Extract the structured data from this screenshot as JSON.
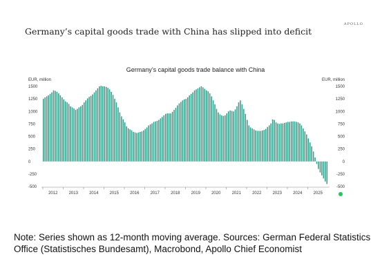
{
  "brand": "APOLLO",
  "headline": "Germany’s capital goods trade with China has slipped into deficit",
  "note": "Note: Series shown as 12-month moving average. Sources: German Federal Statistics Office (Statistisches Bundesamt), Macrobond, Apollo Chief Economist",
  "colors": {
    "bar": "#2e9c86",
    "marker": "#22c55e"
  },
  "chart_data": {
    "type": "bar",
    "title": "Germany’s capital goods trade balance with China",
    "ylabel_left": "EUR, million",
    "ylabel_right": "EUR, million",
    "ylim": [
      -500,
      1500
    ],
    "yticks": [
      1500,
      1250,
      1000,
      750,
      500,
      250,
      0,
      -250,
      -500
    ],
    "xticks": [
      "2012",
      "2013",
      "2014",
      "2015",
      "2016",
      "2017",
      "2018",
      "2019",
      "2020",
      "2021",
      "2022",
      "2023",
      "2024",
      "2025"
    ],
    "x_start": "2012-01",
    "frequency": "monthly",
    "values": [
      1250,
      1280,
      1300,
      1320,
      1350,
      1380,
      1420,
      1410,
      1390,
      1360,
      1320,
      1280,
      1240,
      1200,
      1180,
      1150,
      1100,
      1080,
      1060,
      1030,
      1050,
      1080,
      1100,
      1130,
      1180,
      1220,
      1260,
      1290,
      1310,
      1340,
      1380,
      1420,
      1460,
      1500,
      1510,
      1500,
      1500,
      1490,
      1470,
      1440,
      1390,
      1330,
      1250,
      1180,
      1080,
      980,
      900,
      840,
      780,
      700,
      660,
      640,
      620,
      590,
      580,
      570,
      580,
      590,
      600,
      620,
      650,
      680,
      720,
      740,
      760,
      790,
      800,
      810,
      830,
      860,
      890,
      920,
      950,
      960,
      960,
      960,
      990,
      1030,
      1070,
      1120,
      1160,
      1190,
      1220,
      1240,
      1250,
      1280,
      1320,
      1350,
      1380,
      1420,
      1440,
      1460,
      1480,
      1500,
      1480,
      1450,
      1420,
      1400,
      1360,
      1300,
      1220,
      1140,
      1050,
      980,
      940,
      920,
      910,
      920,
      960,
      1000,
      1020,
      1010,
      1000,
      1040,
      1100,
      1180,
      1220,
      1140,
      1050,
      950,
      830,
      720,
      680,
      660,
      640,
      620,
      610,
      610,
      610,
      620,
      630,
      650,
      690,
      720,
      760,
      840,
      830,
      780,
      760,
      750,
      760,
      760,
      770,
      780,
      790,
      790,
      800,
      800,
      800,
      790,
      780,
      760,
      720,
      660,
      600,
      540,
      460,
      380,
      300,
      200,
      80,
      -50,
      -150,
      -220,
      -280,
      -340,
      -400,
      -450
    ]
  }
}
